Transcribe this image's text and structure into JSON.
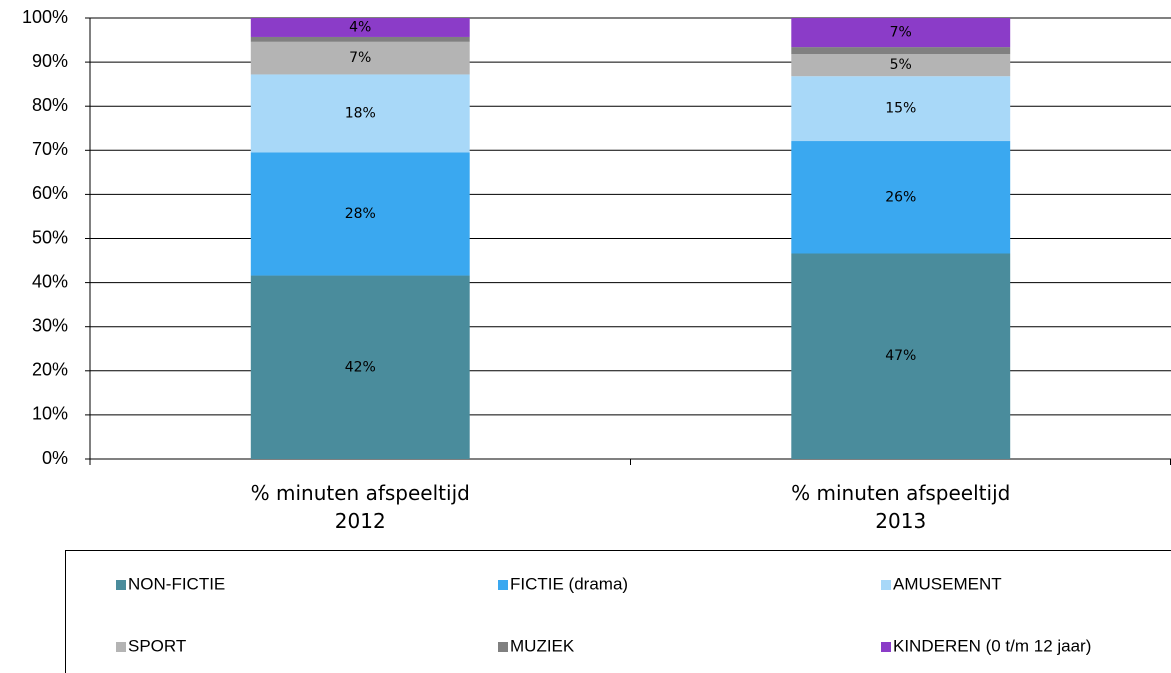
{
  "chart_data": {
    "type": "stacked_bar",
    "categories": [
      "% minuten afspeeltijd\n2012",
      "%  minuten afspeeltijd\n2013"
    ],
    "series": [
      {
        "name": "NON-FICTIE",
        "color": "#4a8c9c",
        "values": [
          41.6,
          46.6
        ],
        "value_labels": [
          "42%",
          "47%"
        ]
      },
      {
        "name": "FICTIE (drama)",
        "color": "#3aa8f0",
        "values": [
          27.9,
          25.5
        ],
        "value_labels": [
          "28%",
          "26%"
        ]
      },
      {
        "name": "AMUSEMENT",
        "color": "#a8d8f8",
        "values": [
          17.7,
          14.7
        ],
        "value_labels": [
          "18%",
          "15%"
        ]
      },
      {
        "name": "SPORT",
        "color": "#b4b4b4",
        "values": [
          7.4,
          5.0
        ],
        "value_labels": [
          "7%",
          "5%"
        ]
      },
      {
        "name": "MUZIEK",
        "color": "#808080",
        "values": [
          1.1,
          1.6
        ],
        "value_labels": [
          null,
          null
        ]
      },
      {
        "name": "KINDEREN (0 t/m 12 jaar)",
        "color": "#8b3cc8",
        "values": [
          4.3,
          6.6
        ],
        "value_labels": [
          "4%",
          "7%"
        ]
      }
    ],
    "ylim": [
      0,
      100
    ],
    "yticks": [
      {
        "value": 0,
        "label": "0%"
      },
      {
        "value": 10,
        "label": "10%"
      },
      {
        "value": 20,
        "label": "20%"
      },
      {
        "value": 30,
        "label": "30%"
      },
      {
        "value": 40,
        "label": "40%"
      },
      {
        "value": 50,
        "label": "50%"
      },
      {
        "value": 60,
        "label": "60%"
      },
      {
        "value": 70,
        "label": "70%"
      },
      {
        "value": 80,
        "label": "80%"
      },
      {
        "value": 90,
        "label": "90%"
      },
      {
        "value": 100,
        "label": "100%"
      }
    ],
    "grid": true,
    "legend": "bottom"
  }
}
